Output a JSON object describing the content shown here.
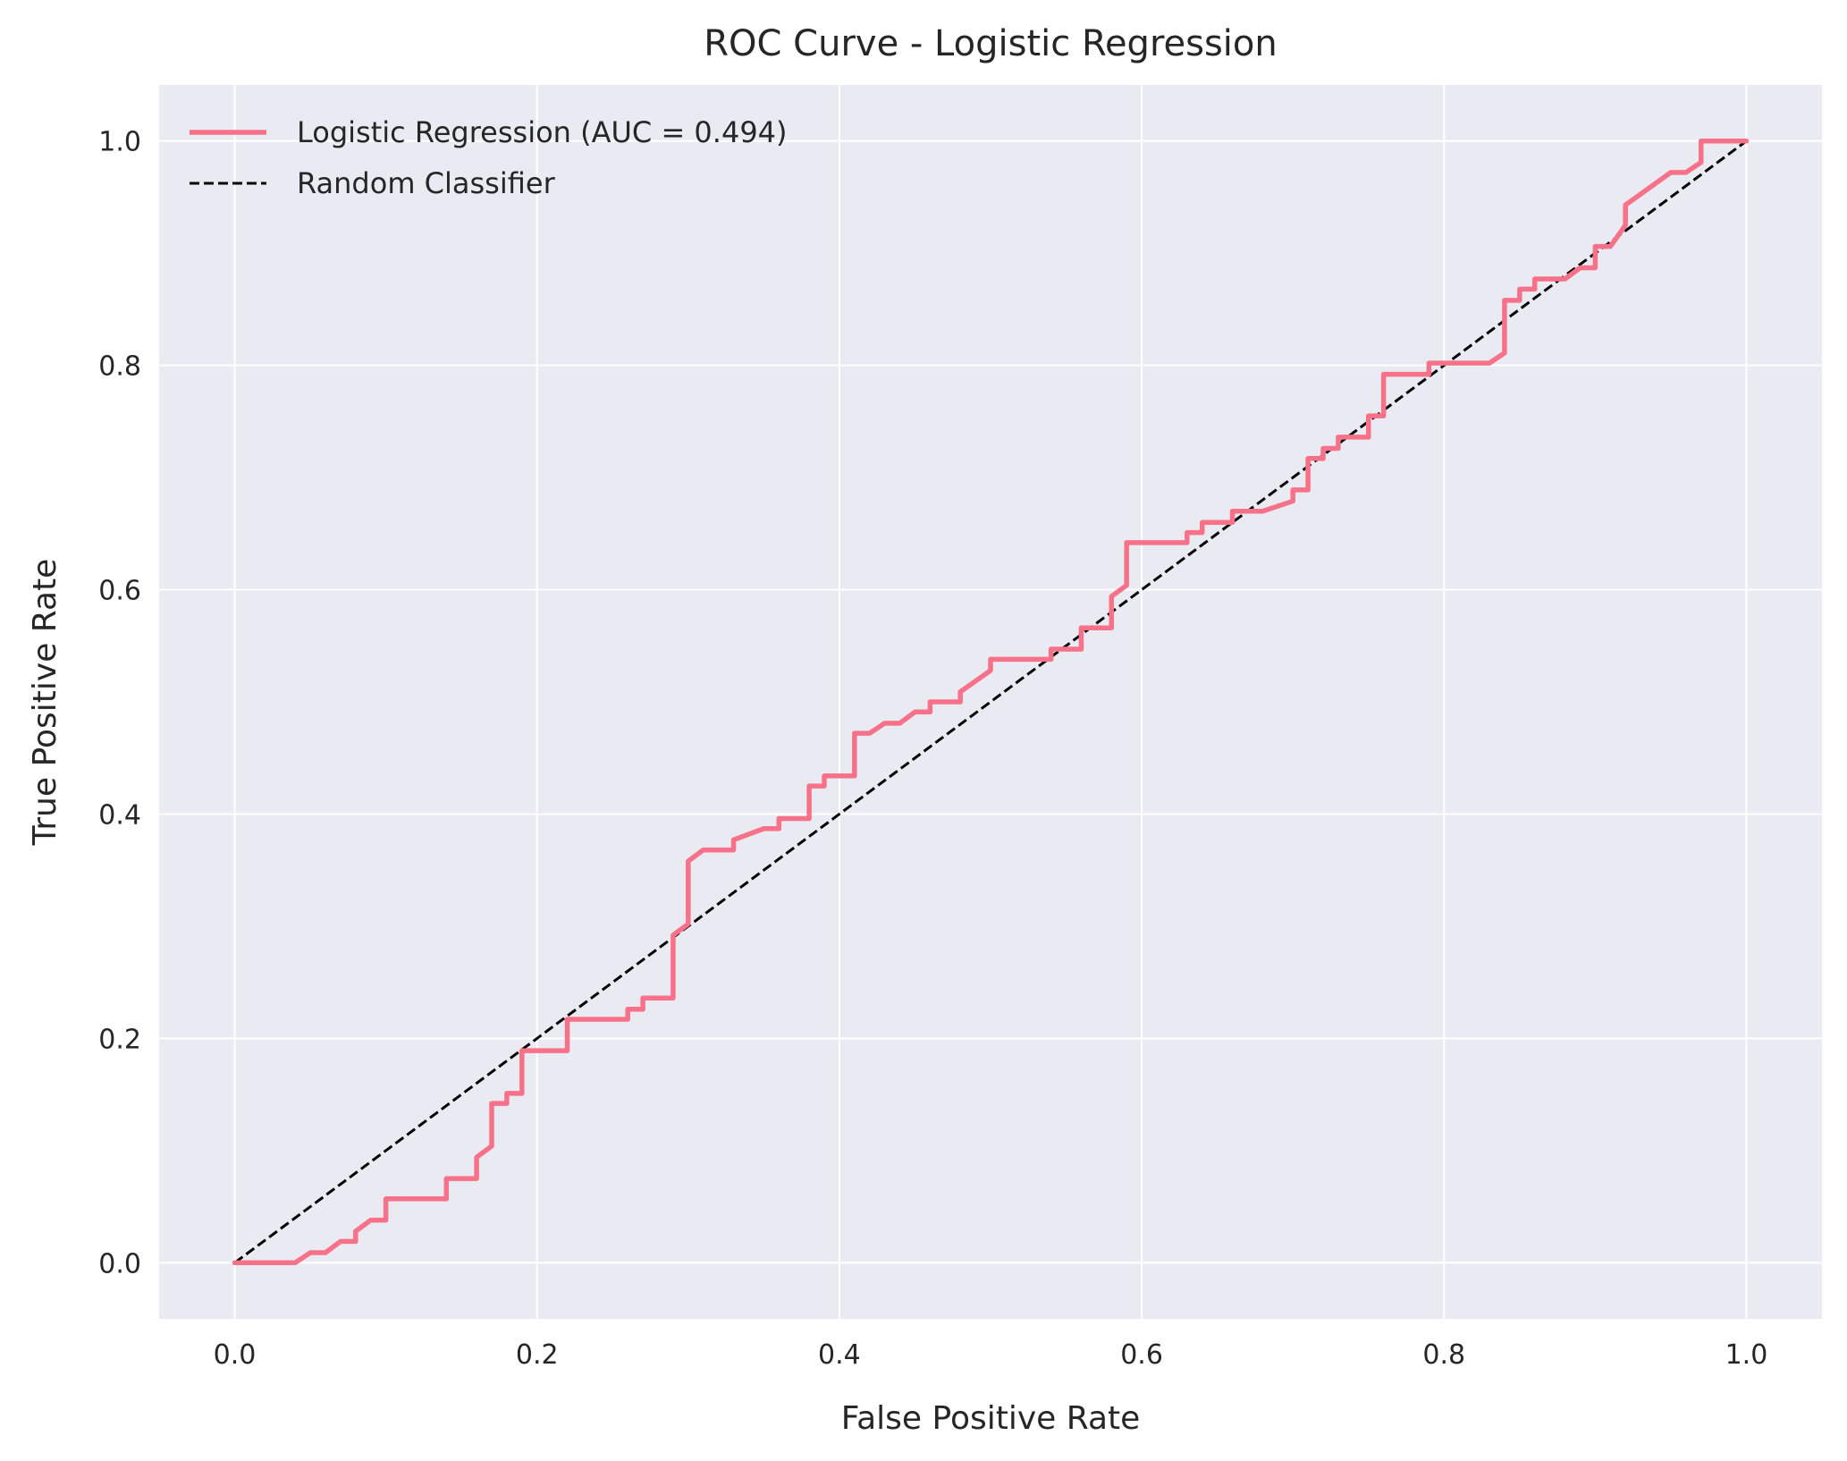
{
  "colors": {
    "background": "#eaeaf2",
    "grid": "#ffffff",
    "roc_line": "#f77189",
    "baseline": "#000000"
  },
  "chart_data": {
    "type": "line",
    "title": "ROC Curve - Logistic Regression",
    "xlabel": "False Positive Rate",
    "ylabel": "True Positive Rate",
    "xlim": [
      -0.05,
      1.05
    ],
    "ylim": [
      -0.05,
      1.05
    ],
    "xticks": [
      0.0,
      0.2,
      0.4,
      0.6,
      0.8,
      1.0
    ],
    "xtick_labels": [
      "0.0",
      "0.2",
      "0.4",
      "0.6",
      "0.8",
      "1.0"
    ],
    "yticks": [
      0.0,
      0.2,
      0.4,
      0.6,
      0.8,
      1.0
    ],
    "ytick_labels": [
      "0.0",
      "0.2",
      "0.4",
      "0.6",
      "0.8",
      "1.0"
    ],
    "grid": true,
    "legend_position": "upper-left",
    "series": [
      {
        "name": "Logistic Regression (AUC = 0.494)",
        "style": "solid",
        "points": [
          [
            0.0,
            0.0
          ],
          [
            0.04,
            0.0
          ],
          [
            0.05,
            0.009
          ],
          [
            0.06,
            0.009
          ],
          [
            0.07,
            0.019
          ],
          [
            0.08,
            0.019
          ],
          [
            0.08,
            0.028
          ],
          [
            0.09,
            0.038
          ],
          [
            0.1,
            0.038
          ],
          [
            0.1,
            0.057
          ],
          [
            0.14,
            0.057
          ],
          [
            0.14,
            0.075
          ],
          [
            0.16,
            0.075
          ],
          [
            0.16,
            0.094
          ],
          [
            0.17,
            0.104
          ],
          [
            0.17,
            0.142
          ],
          [
            0.18,
            0.142
          ],
          [
            0.18,
            0.151
          ],
          [
            0.19,
            0.151
          ],
          [
            0.19,
            0.189
          ],
          [
            0.22,
            0.189
          ],
          [
            0.22,
            0.217
          ],
          [
            0.26,
            0.217
          ],
          [
            0.26,
            0.226
          ],
          [
            0.27,
            0.226
          ],
          [
            0.27,
            0.236
          ],
          [
            0.29,
            0.236
          ],
          [
            0.29,
            0.292
          ],
          [
            0.3,
            0.302
          ],
          [
            0.3,
            0.358
          ],
          [
            0.31,
            0.368
          ],
          [
            0.33,
            0.368
          ],
          [
            0.33,
            0.377
          ],
          [
            0.35,
            0.387
          ],
          [
            0.36,
            0.387
          ],
          [
            0.36,
            0.396
          ],
          [
            0.38,
            0.396
          ],
          [
            0.38,
            0.425
          ],
          [
            0.39,
            0.425
          ],
          [
            0.39,
            0.434
          ],
          [
            0.41,
            0.434
          ],
          [
            0.41,
            0.472
          ],
          [
            0.42,
            0.472
          ],
          [
            0.43,
            0.481
          ],
          [
            0.44,
            0.481
          ],
          [
            0.45,
            0.491
          ],
          [
            0.46,
            0.491
          ],
          [
            0.46,
            0.5
          ],
          [
            0.48,
            0.5
          ],
          [
            0.48,
            0.509
          ],
          [
            0.5,
            0.528
          ],
          [
            0.5,
            0.538
          ],
          [
            0.54,
            0.538
          ],
          [
            0.54,
            0.547
          ],
          [
            0.56,
            0.547
          ],
          [
            0.56,
            0.566
          ],
          [
            0.58,
            0.566
          ],
          [
            0.58,
            0.594
          ],
          [
            0.59,
            0.604
          ],
          [
            0.59,
            0.642
          ],
          [
            0.63,
            0.642
          ],
          [
            0.63,
            0.651
          ],
          [
            0.64,
            0.651
          ],
          [
            0.64,
            0.66
          ],
          [
            0.66,
            0.66
          ],
          [
            0.66,
            0.67
          ],
          [
            0.68,
            0.67
          ],
          [
            0.7,
            0.679
          ],
          [
            0.7,
            0.689
          ],
          [
            0.71,
            0.689
          ],
          [
            0.71,
            0.717
          ],
          [
            0.72,
            0.717
          ],
          [
            0.72,
            0.726
          ],
          [
            0.73,
            0.726
          ],
          [
            0.73,
            0.736
          ],
          [
            0.75,
            0.736
          ],
          [
            0.75,
            0.755
          ],
          [
            0.76,
            0.755
          ],
          [
            0.76,
            0.792
          ],
          [
            0.79,
            0.792
          ],
          [
            0.79,
            0.802
          ],
          [
            0.83,
            0.802
          ],
          [
            0.84,
            0.811
          ],
          [
            0.84,
            0.858
          ],
          [
            0.85,
            0.858
          ],
          [
            0.85,
            0.868
          ],
          [
            0.86,
            0.868
          ],
          [
            0.86,
            0.877
          ],
          [
            0.88,
            0.877
          ],
          [
            0.89,
            0.887
          ],
          [
            0.9,
            0.887
          ],
          [
            0.9,
            0.906
          ],
          [
            0.91,
            0.906
          ],
          [
            0.92,
            0.925
          ],
          [
            0.92,
            0.943
          ],
          [
            0.95,
            0.972
          ],
          [
            0.96,
            0.972
          ],
          [
            0.97,
            0.981
          ],
          [
            0.97,
            1.0
          ],
          [
            1.0,
            1.0
          ]
        ]
      },
      {
        "name": "Random Classifier",
        "style": "dashed",
        "points": [
          [
            0.0,
            0.0
          ],
          [
            1.0,
            1.0
          ]
        ]
      }
    ]
  }
}
